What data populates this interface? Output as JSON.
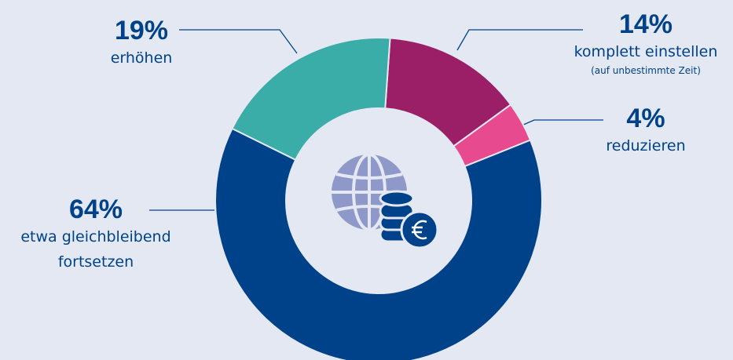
{
  "chart_data": {
    "type": "pie",
    "donut": true,
    "categories": [
      "komplett einstellen",
      "reduzieren",
      "etwa gleichbleibend fortsetzen",
      "erhöhen"
    ],
    "values": [
      14,
      4,
      64,
      19
    ],
    "value_labels": [
      "14%",
      "4%",
      "64%",
      "19%"
    ],
    "colors": [
      "#9b1f66",
      "#e84a8f",
      "#00428a",
      "#3aada8"
    ],
    "annotations": [
      "(auf unbestimmte Zeit)"
    ]
  }
}
